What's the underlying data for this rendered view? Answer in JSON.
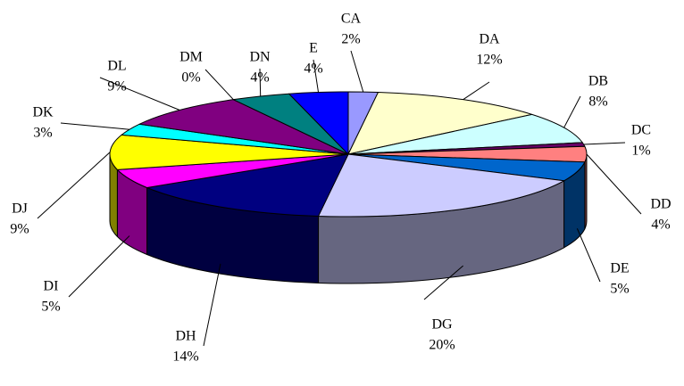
{
  "chart_data": {
    "type": "pie",
    "categories": [
      "CA",
      "DA",
      "DB",
      "DC",
      "DD",
      "DE",
      "DG",
      "DH",
      "DI",
      "DJ",
      "DK",
      "DL",
      "DM",
      "DN",
      "E"
    ],
    "values": [
      2,
      12,
      8,
      1,
      4,
      5,
      20,
      14,
      5,
      9,
      3,
      9,
      0,
      4,
      4
    ],
    "value_labels": [
      "2%",
      "12%",
      "8%",
      "1%",
      "4%",
      "5%",
      "20%",
      "14%",
      "5%",
      "9%",
      "3%",
      "9%",
      "0%",
      "4%",
      "4%"
    ],
    "colors": [
      "#9999ff",
      "#ffffcc",
      "#ccffff",
      "#660066",
      "#ff8080",
      "#0066cc",
      "#ccccff",
      "#000080",
      "#ff00ff",
      "#ffff00",
      "#00ffff",
      "#800080",
      "#800000",
      "#008080",
      "#0000ff"
    ]
  }
}
